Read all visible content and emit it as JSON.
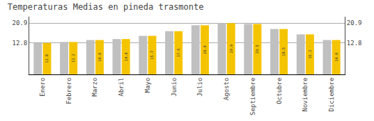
{
  "chart_data": {
    "type": "bar",
    "title": "Temperaturas Medias en pineda trasmonte",
    "categories": [
      "Enero",
      "Febrero",
      "Marzo",
      "Abril",
      "Mayo",
      "Junio",
      "Julio",
      "Agosto",
      "Septiembre",
      "Octubre",
      "Noviembre",
      "Diciembre"
    ],
    "series": [
      {
        "color": "#C0C0C0",
        "values": [
          12.8,
          13.2,
          14.0,
          14.4,
          15.7,
          17.6,
          20.0,
          20.9,
          20.5,
          18.5,
          16.3,
          14.0
        ]
      },
      {
        "color": "#F5C400",
        "values": [
          12.8,
          13.2,
          14.0,
          14.4,
          15.7,
          17.6,
          20.0,
          20.9,
          20.5,
          18.5,
          16.3,
          14.0
        ],
        "value_labels": [
          "12.8",
          "13.2",
          "14.0",
          "14.4",
          "15.7",
          "17.6",
          "20.0",
          "20.9",
          "20.5",
          "18.5",
          "16.3",
          "14.0"
        ]
      }
    ],
    "data_labels": true,
    "ylim": [
      0.0,
      23.5
    ],
    "yticks": [
      12.8,
      20.9
    ],
    "y2lim": [
      0.0,
      23.5
    ],
    "y2ticks": [
      12.8,
      20.9
    ],
    "grid": true
  }
}
